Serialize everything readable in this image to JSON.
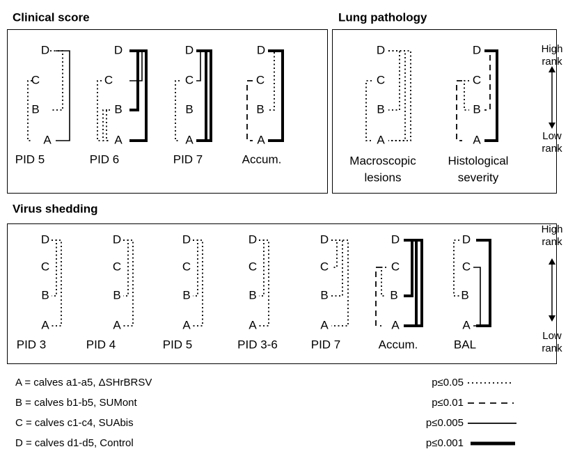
{
  "clinical_score": {
    "title": "Clinical score",
    "panels": [
      {
        "letters": [
          "D",
          "C",
          "B",
          "A"
        ],
        "label": [
          "PID 5"
        ]
      },
      {
        "letters": [
          "D",
          "C",
          "B",
          "A"
        ],
        "label": [
          "PID 6"
        ]
      },
      {
        "letters": [
          "D",
          "C",
          "B",
          "A"
        ],
        "label": [
          "PID 7"
        ]
      },
      {
        "letters": [
          "D",
          "C",
          "B",
          "A"
        ],
        "label": [
          "Accum."
        ]
      }
    ]
  },
  "lung_pathology": {
    "title": "Lung pathology",
    "panels": [
      {
        "letters": [
          "D",
          "C",
          "B",
          "A"
        ],
        "label": [
          "Macroscopic",
          "lesions"
        ]
      },
      {
        "letters": [
          "D",
          "C",
          "B",
          "A"
        ],
        "label": [
          "Histological",
          "severity"
        ]
      }
    ]
  },
  "virus_shedding": {
    "title": "Virus shedding",
    "panels": [
      {
        "letters": [
          "D",
          "C",
          "B",
          "A"
        ],
        "label": [
          "PID 3"
        ]
      },
      {
        "letters": [
          "D",
          "C",
          "B",
          "A"
        ],
        "label": [
          "PID 4"
        ]
      },
      {
        "letters": [
          "D",
          "C",
          "B",
          "A"
        ],
        "label": [
          "PID 5"
        ]
      },
      {
        "letters": [
          "D",
          "C",
          "B",
          "A"
        ],
        "label": [
          "PID 3-6"
        ]
      },
      {
        "letters": [
          "D",
          "C",
          "B",
          "A"
        ],
        "label": [
          "PID 7"
        ]
      },
      {
        "letters": [
          "D",
          "C",
          "B",
          "A"
        ],
        "label": [
          "Accum."
        ]
      },
      {
        "letters": [
          "D",
          "C",
          "B",
          "A"
        ],
        "label": [
          "BAL"
        ]
      }
    ]
  },
  "rank_axes": [
    {
      "high": [
        "High",
        "rank"
      ],
      "low": [
        "Low",
        "rank"
      ]
    },
    {
      "high": [
        "High",
        "rank"
      ],
      "low": [
        "Low",
        "rank"
      ]
    }
  ],
  "legend": {
    "groups": [
      "A = calves a1-a5, ΔSHrBRSV",
      "B = calves b1-b5, SUMont",
      "C = calves c1-c4, SUAbis",
      "D = calves d1-d5, Control"
    ],
    "significance": [
      "p≤0.05",
      "p≤0.01",
      "p≤0.005",
      "p≤0.001"
    ]
  }
}
